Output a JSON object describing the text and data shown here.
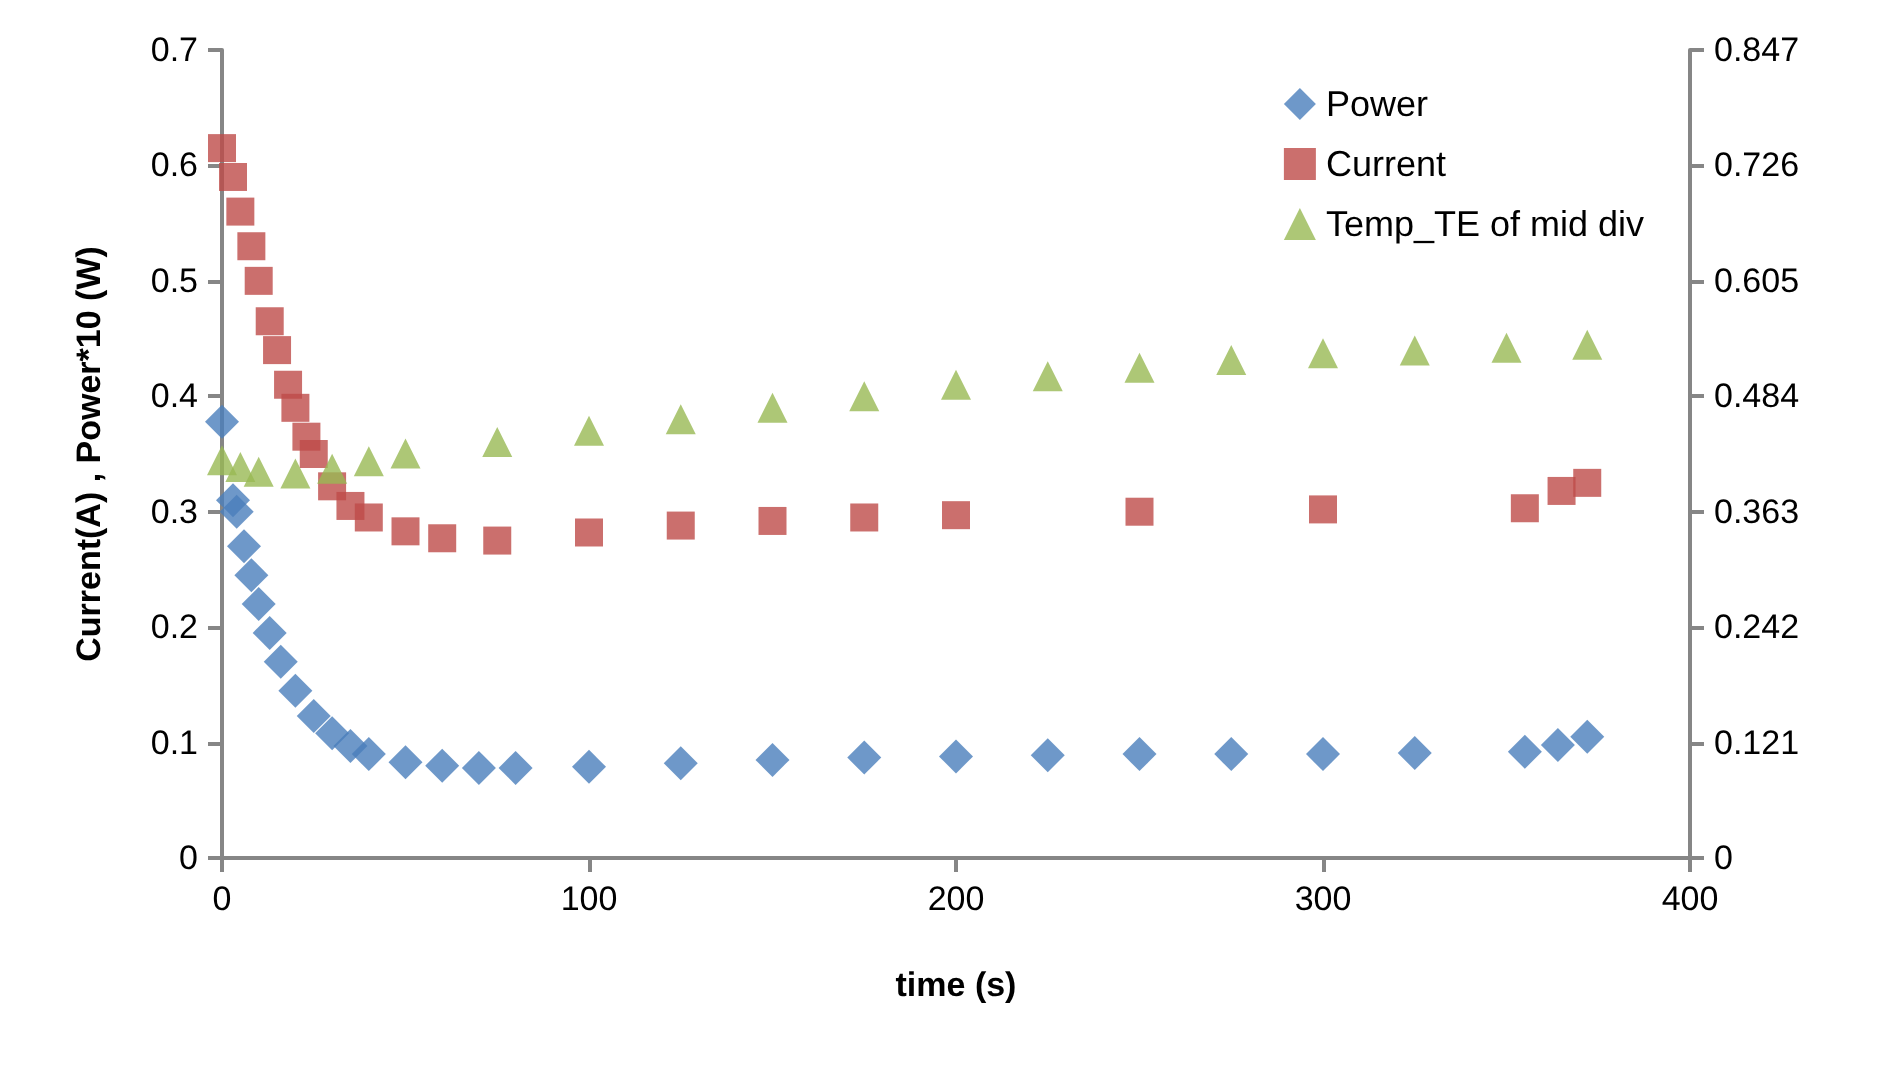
{
  "chart_data": {
    "type": "scatter",
    "xlabel": "time (s)",
    "ylabel": "Current(A) , Power*10 (W)",
    "xlim": [
      0,
      400
    ],
    "xticks": [
      0,
      100,
      200,
      300,
      400
    ],
    "ylim": [
      0,
      0.7
    ],
    "yticks": [
      0,
      0.1,
      0.2,
      0.3,
      0.4,
      0.5,
      0.6,
      0.7
    ],
    "y2lim": [
      0,
      0.847
    ],
    "y2ticks": [
      0,
      0.121,
      0.242,
      0.363,
      0.484,
      0.605,
      0.726,
      0.847
    ],
    "grid": false,
    "legend": "top right",
    "series": [
      {
        "name": "Power",
        "color": "#4a7ebb",
        "marker": "diamond",
        "x": [
          0,
          3,
          4,
          6,
          8,
          10,
          13,
          16,
          20,
          25,
          30,
          35,
          40,
          50,
          60,
          70,
          80,
          100,
          125,
          150,
          175,
          200,
          225,
          250,
          275,
          300,
          325,
          355,
          364,
          372
        ],
        "values": [
          0.378,
          0.31,
          0.3,
          0.27,
          0.245,
          0.22,
          0.195,
          0.17,
          0.145,
          0.123,
          0.108,
          0.097,
          0.09,
          0.083,
          0.08,
          0.078,
          0.078,
          0.079,
          0.082,
          0.085,
          0.087,
          0.088,
          0.089,
          0.09,
          0.09,
          0.09,
          0.091,
          0.092,
          0.098,
          0.105
        ]
      },
      {
        "name": "Current",
        "color": "#be4b48",
        "marker": "square",
        "x": [
          0,
          3,
          5,
          8,
          10,
          13,
          15,
          18,
          20,
          23,
          25,
          30,
          35,
          40,
          50,
          60,
          75,
          100,
          125,
          150,
          175,
          200,
          250,
          300,
          355,
          365,
          372
        ],
        "values": [
          0.615,
          0.59,
          0.56,
          0.53,
          0.5,
          0.465,
          0.44,
          0.41,
          0.39,
          0.365,
          0.35,
          0.322,
          0.305,
          0.295,
          0.283,
          0.277,
          0.275,
          0.282,
          0.288,
          0.292,
          0.295,
          0.297,
          0.3,
          0.302,
          0.303,
          0.318,
          0.325
        ]
      },
      {
        "name": "Temp_TE of mid div",
        "color": "#98b954",
        "marker": "triangle",
        "axis": "y2",
        "x": [
          0,
          5,
          10,
          20,
          30,
          40,
          50,
          75,
          100,
          125,
          150,
          175,
          200,
          225,
          250,
          275,
          300,
          325,
          350,
          372
        ],
        "values": [
          0.417,
          0.41,
          0.405,
          0.403,
          0.408,
          0.416,
          0.424,
          0.436,
          0.448,
          0.46,
          0.472,
          0.484,
          0.496,
          0.505,
          0.514,
          0.522,
          0.529,
          0.532,
          0.535,
          0.538
        ]
      }
    ]
  }
}
